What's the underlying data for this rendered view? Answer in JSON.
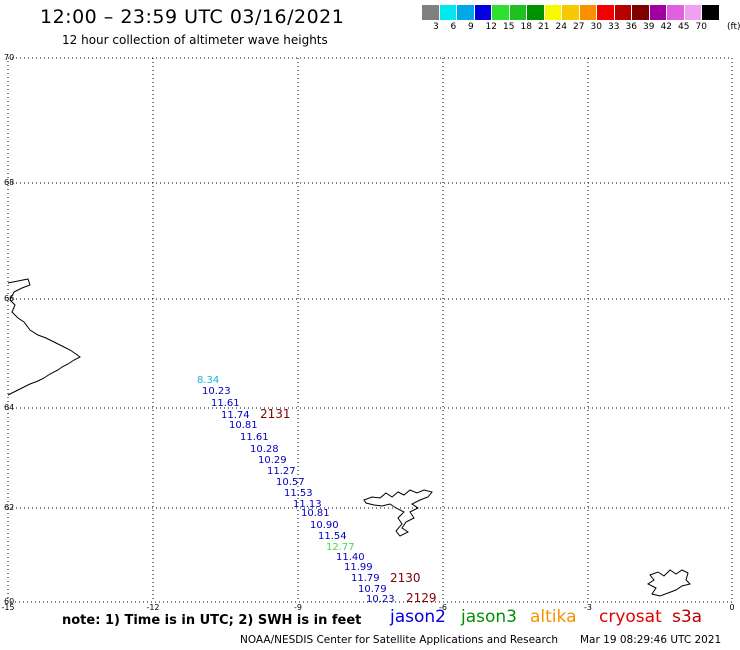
{
  "header": {
    "title": "12:00 – 23:59 UTC 03/16/2021",
    "subtitle": "12 hour collection of altimeter wave heights"
  },
  "colorbar": {
    "unit_label": "(ft)",
    "items": [
      {
        "color": "#808080",
        "label": "3"
      },
      {
        "color": "#00e8f0",
        "label": "6"
      },
      {
        "color": "#00a8e8",
        "label": "9"
      },
      {
        "color": "#0000e0",
        "label": "12"
      },
      {
        "color": "#30e030",
        "label": "15"
      },
      {
        "color": "#20c020",
        "label": "18"
      },
      {
        "color": "#009000",
        "label": "21"
      },
      {
        "color": "#f8f800",
        "label": "24"
      },
      {
        "color": "#f8c800",
        "label": "27"
      },
      {
        "color": "#f89000",
        "label": "30"
      },
      {
        "color": "#f00000",
        "label": "33"
      },
      {
        "color": "#b80000",
        "label": "36"
      },
      {
        "color": "#800000",
        "label": "39"
      },
      {
        "color": "#a000a0",
        "label": "42"
      },
      {
        "color": "#e060e0",
        "label": "45"
      },
      {
        "color": "#f0a0f0",
        "label": "70"
      },
      {
        "color": "#000000",
        "label": ""
      }
    ]
  },
  "map": {
    "lat_ticks": [
      "70",
      "68",
      "66",
      "64",
      "62",
      "60"
    ],
    "lon_ticks": [
      "-15",
      "-12",
      "-9",
      "-6",
      "-3",
      "0"
    ],
    "grid": true,
    "track_passes": [
      "2131",
      "2130",
      "2129"
    ],
    "wave_labels": [
      {
        "text": "8.34",
        "color": "#1ab0e0"
      },
      {
        "text": "10.23",
        "color": "#0000c0"
      },
      {
        "text": "11.61",
        "color": "#0000c0"
      },
      {
        "text": "11.74",
        "color": "#0000c0"
      },
      {
        "text": "10.81",
        "color": "#0000c0"
      },
      {
        "text": "11.61",
        "color": "#0000c0"
      },
      {
        "text": "10.28",
        "color": "#0000c0"
      },
      {
        "text": "10.29",
        "color": "#0000c0"
      },
      {
        "text": "11.27",
        "color": "#0000c0"
      },
      {
        "text": "10.57",
        "color": "#0000c0"
      },
      {
        "text": "11.53",
        "color": "#0000c0"
      },
      {
        "text": "11.13",
        "color": "#0000c0"
      },
      {
        "text": "10.81",
        "color": "#0000c0"
      },
      {
        "text": "10.90",
        "color": "#0000c0"
      },
      {
        "text": "11.54",
        "color": "#0000c0"
      },
      {
        "text": "12.77",
        "color": "#40e040"
      },
      {
        "text": "11.40",
        "color": "#0000c0"
      },
      {
        "text": "11.99",
        "color": "#0000c0"
      },
      {
        "text": "11.79",
        "color": "#0000c0"
      },
      {
        "text": "10.79",
        "color": "#0000c0"
      },
      {
        "text": "10.23",
        "color": "#0000c0"
      }
    ],
    "pass_color": "#800000",
    "coast_color": "#000000"
  },
  "footer": {
    "note": "note:  1) Time is in UTC;  2) SWH is in feet",
    "satellites": [
      {
        "name": "jason2",
        "color": "#0000e0"
      },
      {
        "name": "jason3",
        "color": "#009000"
      },
      {
        "name": "altika",
        "color": "#f89000"
      },
      {
        "name": "cryosat",
        "color": "#e00000"
      },
      {
        "name": "s3a",
        "color": "#b80000"
      }
    ],
    "credit": "NOAA/NESDIS Center for Satellite Applications and Research",
    "timestamp": "Mar 19 08:29:46 UTC 2021"
  }
}
